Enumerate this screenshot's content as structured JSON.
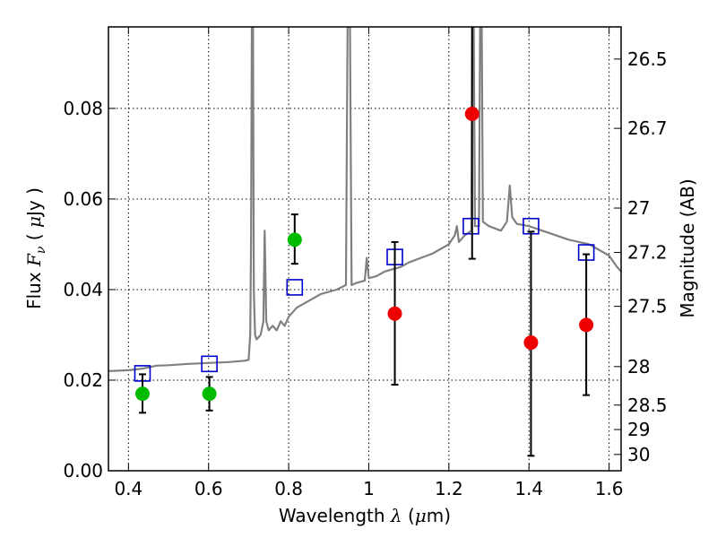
{
  "chart_data": {
    "type": "scatter",
    "xlabel": "Wavelength  λ (μm)",
    "ylabel": "Flux  F_ν  ( μJy )",
    "ylabel_parts": {
      "prefix": "Flux  ",
      "sym": "F",
      "sub": "ν",
      "mid": "  (  ",
      "mu": "μ",
      "suffix": "Jy )"
    },
    "xlabel_parts": {
      "prefix": "Wavelength  ",
      "sym": "λ",
      "mid": " (",
      "mu": "μ",
      "suffix": "m)"
    },
    "y2label": "Magnitude (AB)",
    "xlim": [
      0.35,
      1.63
    ],
    "ylim": [
      0.0,
      0.098
    ],
    "grid": true,
    "x_ticks": [
      {
        "value": 0.4,
        "label": "0.4"
      },
      {
        "value": 0.6,
        "label": "0.6"
      },
      {
        "value": 0.8,
        "label": "0.8"
      },
      {
        "value": 1.0,
        "label": "1"
      },
      {
        "value": 1.2,
        "label": "1.2"
      },
      {
        "value": 1.4,
        "label": "1.4"
      },
      {
        "value": 1.6,
        "label": "1.6"
      }
    ],
    "y_ticks": [
      {
        "value": 0.0,
        "label": "0.00"
      },
      {
        "value": 0.02,
        "label": "0.02"
      },
      {
        "value": 0.04,
        "label": "0.04"
      },
      {
        "value": 0.06,
        "label": "0.06"
      },
      {
        "value": 0.08,
        "label": "0.08"
      }
    ],
    "y2_ticks": [
      {
        "flux": 0.0909,
        "label": "26.5"
      },
      {
        "flux": 0.0756,
        "label": "26.7"
      },
      {
        "flux": 0.058,
        "label": "27"
      },
      {
        "flux": 0.0482,
        "label": "27.2"
      },
      {
        "flux": 0.0363,
        "label": "27.5"
      },
      {
        "flux": 0.023,
        "label": "28"
      },
      {
        "flux": 0.0145,
        "label": "28.5"
      },
      {
        "flux": 0.0091,
        "label": "29"
      },
      {
        "flux": 0.0036,
        "label": "30"
      }
    ],
    "series": [
      {
        "kind": "spectrum",
        "color": "#808080",
        "points": [
          [
            0.35,
            0.022
          ],
          [
            0.4,
            0.0222
          ],
          [
            0.43,
            0.0225
          ],
          [
            0.45,
            0.0228
          ],
          [
            0.47,
            0.0232
          ],
          [
            0.5,
            0.0233
          ],
          [
            0.55,
            0.0236
          ],
          [
            0.6,
            0.0238
          ],
          [
            0.65,
            0.024
          ],
          [
            0.69,
            0.0243
          ],
          [
            0.7,
            0.0245
          ],
          [
            0.704,
            0.03
          ],
          [
            0.706,
            0.05
          ],
          [
            0.708,
            0.098
          ],
          [
            0.711,
            0.098
          ],
          [
            0.713,
            0.04
          ],
          [
            0.716,
            0.03
          ],
          [
            0.72,
            0.029
          ],
          [
            0.73,
            0.03
          ],
          [
            0.737,
            0.033
          ],
          [
            0.74,
            0.053
          ],
          [
            0.744,
            0.033
          ],
          [
            0.75,
            0.031
          ],
          [
            0.76,
            0.032
          ],
          [
            0.77,
            0.031
          ],
          [
            0.78,
            0.033
          ],
          [
            0.79,
            0.032
          ],
          [
            0.8,
            0.034
          ],
          [
            0.82,
            0.036
          ],
          [
            0.84,
            0.037
          ],
          [
            0.86,
            0.038
          ],
          [
            0.88,
            0.039
          ],
          [
            0.9,
            0.0395
          ],
          [
            0.92,
            0.04
          ],
          [
            0.943,
            0.041
          ],
          [
            0.947,
            0.098
          ],
          [
            0.953,
            0.098
          ],
          [
            0.957,
            0.041
          ],
          [
            0.97,
            0.0415
          ],
          [
            0.99,
            0.042
          ],
          [
            0.995,
            0.047
          ],
          [
            1.0,
            0.0425
          ],
          [
            1.02,
            0.043
          ],
          [
            1.04,
            0.044
          ],
          [
            1.06,
            0.0445
          ],
          [
            1.08,
            0.045
          ],
          [
            1.1,
            0.046
          ],
          [
            1.13,
            0.047
          ],
          [
            1.16,
            0.048
          ],
          [
            1.18,
            0.049
          ],
          [
            1.2,
            0.05
          ],
          [
            1.215,
            0.052
          ],
          [
            1.22,
            0.054
          ],
          [
            1.225,
            0.0505
          ],
          [
            1.24,
            0.052
          ],
          [
            1.256,
            0.053
          ],
          [
            1.258,
            0.098
          ],
          [
            1.262,
            0.098
          ],
          [
            1.265,
            0.054
          ],
          [
            1.275,
            0.054
          ],
          [
            1.278,
            0.098
          ],
          [
            1.282,
            0.098
          ],
          [
            1.285,
            0.055
          ],
          [
            1.3,
            0.054
          ],
          [
            1.33,
            0.053
          ],
          [
            1.345,
            0.055
          ],
          [
            1.352,
            0.063
          ],
          [
            1.358,
            0.056
          ],
          [
            1.37,
            0.0545
          ],
          [
            1.4,
            0.054
          ],
          [
            1.45,
            0.0525
          ],
          [
            1.5,
            0.051
          ],
          [
            1.55,
            0.05
          ],
          [
            1.58,
            0.0485
          ],
          [
            1.6,
            0.0475
          ],
          [
            1.62,
            0.045
          ],
          [
            1.63,
            0.044
          ]
        ]
      },
      {
        "kind": "model_points",
        "marker": "open_square",
        "color": "#0000cc",
        "points": [
          [
            0.435,
            0.0215
          ],
          [
            0.602,
            0.0236
          ],
          [
            0.815,
            0.0405
          ],
          [
            1.065,
            0.0472
          ],
          [
            1.255,
            0.054
          ],
          [
            1.405,
            0.054
          ],
          [
            1.543,
            0.0482
          ]
        ]
      },
      {
        "kind": "detections",
        "marker": "filled_circle",
        "color": "#00bb00",
        "points": [
          {
            "x": 0.435,
            "y": 0.017,
            "ylo": 0.0128,
            "yhi": 0.0213
          },
          {
            "x": 0.602,
            "y": 0.017,
            "ylo": 0.0133,
            "yhi": 0.0207
          },
          {
            "x": 0.815,
            "y": 0.051,
            "ylo": 0.0457,
            "yhi": 0.0566
          }
        ]
      },
      {
        "kind": "detections",
        "marker": "filled_circle",
        "color": "#ee0000",
        "points": [
          {
            "x": 1.065,
            "y": 0.0347,
            "ylo": 0.019,
            "yhi": 0.0505
          },
          {
            "x": 1.258,
            "y": 0.0788,
            "ylo": 0.0468,
            "yhi": 0.098
          },
          {
            "x": 1.405,
            "y": 0.0283,
            "ylo": 0.0033,
            "yhi": 0.0528
          },
          {
            "x": 1.543,
            "y": 0.0322,
            "ylo": 0.0167,
            "yhi": 0.0478
          }
        ]
      }
    ]
  }
}
